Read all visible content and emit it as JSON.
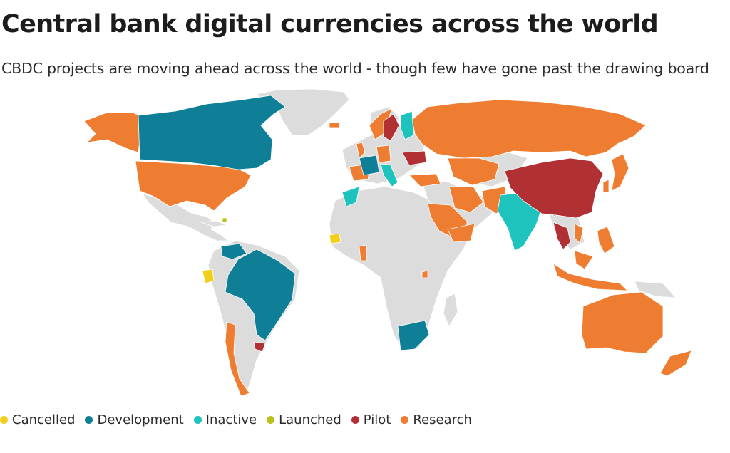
{
  "header": {
    "title": "Central bank digital currencies across the world",
    "subtitle": "CBDC projects are moving ahead across the world - though few have gone past the drawing board"
  },
  "colors": {
    "land": "#dcdcdc",
    "cancelled": "#f2cf1b",
    "development": "#0f7f97",
    "inactive": "#1ec3bd",
    "launched": "#b8c21a",
    "pilot": "#b03034",
    "research": "#ef7d31"
  },
  "legend": [
    {
      "status": "cancelled",
      "label": "Cancelled",
      "color": "#f2cf1b"
    },
    {
      "status": "development",
      "label": "Development",
      "color": "#0f7f97"
    },
    {
      "status": "inactive",
      "label": "Inactive",
      "color": "#1ec3bd"
    },
    {
      "status": "launched",
      "label": "Launched",
      "color": "#b8c21a"
    },
    {
      "status": "pilot",
      "label": "Pilot",
      "color": "#b03034"
    },
    {
      "status": "research",
      "label": "Research",
      "color": "#ef7d31"
    }
  ]
}
